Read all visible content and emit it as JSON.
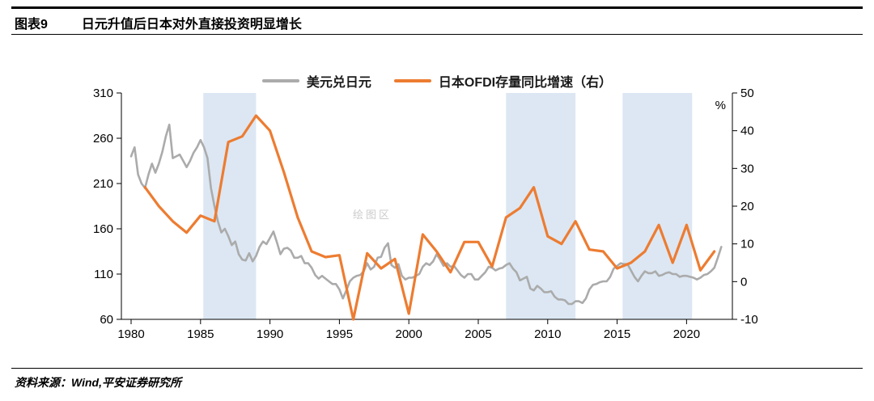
{
  "header": {
    "label": "图表9",
    "title": "日元升值后日本对外直接投资明显增长"
  },
  "footer": {
    "source": "资料来源：Wind,平安证券研究所"
  },
  "watermark": "绘图区",
  "chart_data": {
    "type": "line",
    "title": "日元升值后日本对外直接投资明显增长",
    "legend_position": "top-center",
    "grid": false,
    "colors": {
      "band": "#dce7f3",
      "axis": "#000000",
      "watermark": "#cccccc"
    },
    "x_axis": {
      "min": 1979.3,
      "max": 2023.3,
      "ticks": [
        1980,
        1985,
        1990,
        1995,
        2000,
        2005,
        2010,
        2015,
        2020
      ]
    },
    "y_left": {
      "min": 60,
      "max": 310,
      "ticks": [
        60,
        110,
        160,
        210,
        260,
        310
      ]
    },
    "y_right": {
      "min": -10,
      "max": 50,
      "ticks": [
        -10,
        0,
        10,
        20,
        30,
        40,
        50
      ],
      "unit": "%"
    },
    "highlight_bands": [
      [
        1985.2,
        1989.0
      ],
      [
        2007.0,
        2012.0
      ],
      [
        2015.4,
        2020.4
      ]
    ],
    "series": [
      {
        "name": "美元兑日元",
        "axis": "left",
        "color": "#ababab",
        "line_width": 2.6,
        "x_start": 1980,
        "x_step": 0.25,
        "values": [
          240,
          250,
          220,
          210,
          205,
          220,
          232,
          222,
          232,
          245,
          262,
          275,
          238,
          240,
          242,
          235,
          228,
          235,
          244,
          250,
          258,
          250,
          238,
          205,
          185,
          168,
          156,
          160,
          152,
          142,
          146,
          132,
          126,
          125,
          133,
          124,
          130,
          140,
          146,
          143,
          150,
          157,
          145,
          132,
          138,
          139,
          136,
          128,
          128,
          130,
          122,
          122,
          117,
          109,
          105,
          108,
          105,
          102,
          99,
          99,
          93,
          83,
          92,
          102,
          106,
          108,
          109,
          113,
          122,
          115,
          118,
          128,
          129,
          139,
          144,
          120,
          117,
          121,
          108,
          104,
          106,
          106,
          108,
          110,
          118,
          122,
          120,
          124,
          132,
          126,
          119,
          122,
          118,
          119,
          114,
          109,
          106,
          110,
          110,
          104,
          104,
          108,
          112,
          118,
          117,
          114,
          116,
          117,
          120,
          122,
          116,
          112,
          103,
          105,
          107,
          94,
          92,
          97,
          94,
          90,
          90,
          91,
          85,
          82,
          82,
          81,
          77,
          77,
          80,
          80,
          78,
          83,
          93,
          98,
          99,
          101,
          102,
          102,
          107,
          116,
          119,
          122,
          121,
          121,
          114,
          107,
          102,
          108,
          113,
          111,
          111,
          113,
          108,
          109,
          111,
          112,
          110,
          110,
          107,
          108,
          108,
          107,
          106,
          104,
          106,
          109,
          110,
          113,
          117,
          128,
          140
        ]
      },
      {
        "name": "日本OFDI存量同比增速（右）",
        "axis": "right",
        "color": "#ed7c31",
        "line_width": 3.2,
        "x_start": 1981,
        "x_step": 1,
        "values": [
          25,
          20,
          16,
          13,
          17.5,
          16,
          37,
          38.5,
          44,
          40,
          29,
          17,
          8,
          6.5,
          7,
          -10.5,
          7.5,
          3.5,
          6,
          -8.5,
          12.5,
          8,
          2.5,
          10.5,
          10.5,
          4,
          17,
          19.5,
          25,
          12,
          10,
          16,
          8.5,
          8,
          3.5,
          5,
          8,
          15,
          5,
          15,
          3,
          8
        ]
      }
    ]
  }
}
